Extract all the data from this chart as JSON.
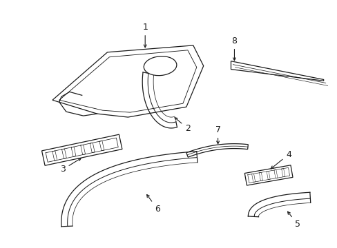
{
  "background_color": "#ffffff",
  "line_color": "#1a1a1a",
  "fig_width": 4.89,
  "fig_height": 3.6,
  "dpi": 100,
  "label_fontsize": 9,
  "lw": 0.9
}
